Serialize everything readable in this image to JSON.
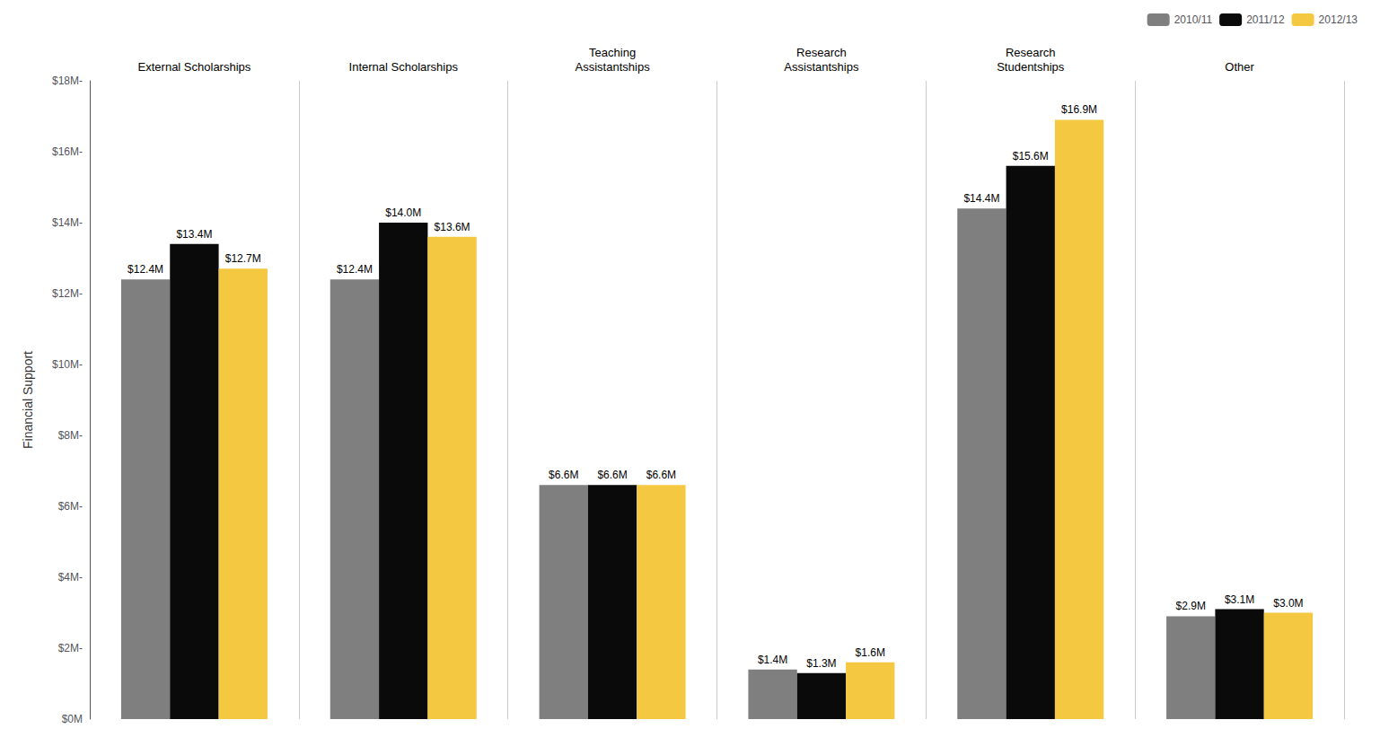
{
  "chart_data": {
    "type": "bar",
    "categories": [
      "External Scholarships",
      "Internal Scholarships",
      "Teaching\nAssistantships",
      "Research\nAssistantships",
      "Research\nStudentships",
      "Other"
    ],
    "series": [
      {
        "name": "2010/11",
        "color": "#7F7F7F",
        "values": [
          12.4,
          12.4,
          6.6,
          1.4,
          14.4,
          2.9
        ],
        "value_labels": [
          "$12.4M",
          "$12.4M",
          "$6.6M",
          "$1.4M",
          "$14.4M",
          "$2.9M"
        ]
      },
      {
        "name": "2011/12",
        "color": "#0A0A0A",
        "values": [
          13.4,
          14.0,
          6.6,
          1.3,
          15.6,
          3.1
        ],
        "value_labels": [
          "$13.4M",
          "$14.0M",
          "$6.6M",
          "$1.3M",
          "$15.6M",
          "$3.1M"
        ]
      },
      {
        "name": "2012/13",
        "color": "#F5C842",
        "values": [
          12.7,
          13.6,
          6.6,
          1.6,
          16.9,
          3.0
        ],
        "value_labels": [
          "$12.7M",
          "$13.6M",
          "$6.6M",
          "$1.6M",
          "$16.9M",
          "$3.0M"
        ]
      }
    ],
    "ylabel": "Financial Support",
    "ylim": [
      0,
      18
    ],
    "yticks": [
      {
        "value": 0,
        "label": "$0M"
      },
      {
        "value": 2,
        "label": "$2M-"
      },
      {
        "value": 4,
        "label": "$4M-"
      },
      {
        "value": 6,
        "label": "$6M-"
      },
      {
        "value": 8,
        "label": "$8M-"
      },
      {
        "value": 10,
        "label": "$10M-"
      },
      {
        "value": 12,
        "label": "$12M-"
      },
      {
        "value": 14,
        "label": "$14M-"
      },
      {
        "value": 16,
        "label": "$16M-"
      },
      {
        "value": 18,
        "label": "$18M-"
      }
    ],
    "grid": false,
    "legend": "upper right",
    "data_labels": true
  }
}
